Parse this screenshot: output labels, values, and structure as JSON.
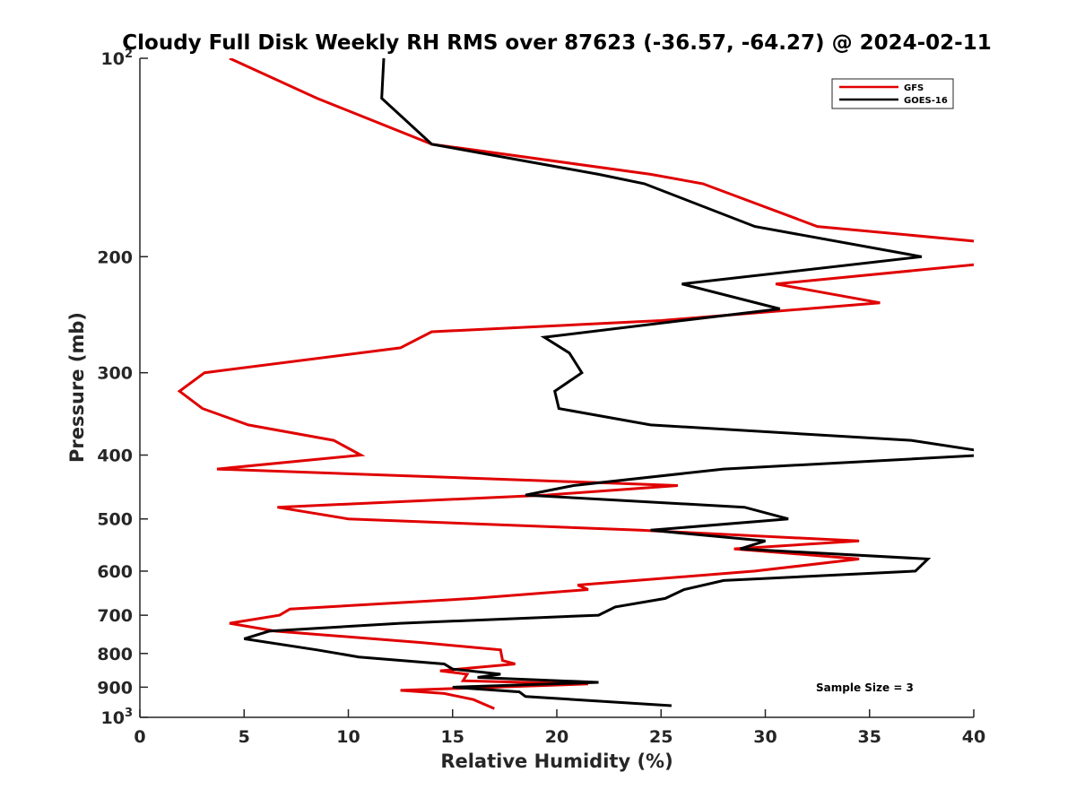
{
  "chart_data": {
    "type": "line",
    "title": "Cloudy Full Disk Weekly RH RMS over 87623 (-36.57, -64.27) @ 2024-02-11",
    "xlabel": "Relative Humidity (%)",
    "ylabel": "Pressure (mb)",
    "xlim": [
      0,
      40
    ],
    "ylim": [
      100,
      1000
    ],
    "yscale": "log",
    "y_reversed": true,
    "grid": false,
    "legend_position": "top-right",
    "x_ticks": [
      0,
      5,
      10,
      15,
      20,
      25,
      30,
      35,
      40
    ],
    "y_ticks": [
      {
        "value": 100,
        "label": "10",
        "sup": "2"
      },
      {
        "value": 200,
        "label": "200",
        "sup": ""
      },
      {
        "value": 300,
        "label": "300",
        "sup": ""
      },
      {
        "value": 400,
        "label": "400",
        "sup": ""
      },
      {
        "value": 500,
        "label": "500",
        "sup": ""
      },
      {
        "value": 600,
        "label": "600",
        "sup": ""
      },
      {
        "value": 700,
        "label": "700",
        "sup": ""
      },
      {
        "value": 800,
        "label": "800",
        "sup": ""
      },
      {
        "value": 900,
        "label": "900",
        "sup": ""
      },
      {
        "value": 1000,
        "label": "10",
        "sup": "3"
      }
    ],
    "annotation": "Sample Size = 3",
    "series": [
      {
        "name": "GFS",
        "color": "#e00000",
        "points": [
          [
            4.3,
            100
          ],
          [
            8.5,
            115
          ],
          [
            14,
            135
          ],
          [
            24.5,
            150
          ],
          [
            27,
            155
          ],
          [
            32.5,
            180
          ],
          [
            40.5,
            190
          ],
          [
            40.5,
            205
          ],
          [
            30.5,
            220
          ],
          [
            35.5,
            235
          ],
          [
            25,
            250
          ],
          [
            14,
            260
          ],
          [
            12.5,
            275
          ],
          [
            3.1,
            300
          ],
          [
            1.9,
            320
          ],
          [
            3,
            340
          ],
          [
            5.2,
            360
          ],
          [
            9.3,
            380
          ],
          [
            10.6,
            400
          ],
          [
            3.7,
            420
          ],
          [
            21.5,
            440
          ],
          [
            25.8,
            445
          ],
          [
            19.5,
            460
          ],
          [
            6.6,
            480
          ],
          [
            10,
            500
          ],
          [
            24,
            520
          ],
          [
            34.5,
            540
          ],
          [
            28.5,
            555
          ],
          [
            34.5,
            575
          ],
          [
            29.5,
            600
          ],
          [
            21,
            630
          ],
          [
            21.5,
            640
          ],
          [
            16,
            660
          ],
          [
            7.2,
            685
          ],
          [
            6.7,
            700
          ],
          [
            4.3,
            720
          ],
          [
            6.5,
            740
          ],
          [
            13.5,
            770
          ],
          [
            17.3,
            790
          ],
          [
            17.4,
            820
          ],
          [
            18,
            830
          ],
          [
            14.4,
            850
          ],
          [
            15.7,
            860
          ],
          [
            15.5,
            880
          ],
          [
            21.5,
            890
          ],
          [
            12.5,
            910
          ],
          [
            14.6,
            920
          ],
          [
            16,
            940
          ],
          [
            17,
            970
          ]
        ]
      },
      {
        "name": "GOES-16",
        "color": "#000000",
        "points": [
          [
            11.7,
            100
          ],
          [
            11.6,
            115
          ],
          [
            14,
            135
          ],
          [
            22,
            150
          ],
          [
            24.2,
            155
          ],
          [
            29.5,
            180
          ],
          [
            37.5,
            200
          ],
          [
            26,
            220
          ],
          [
            30.7,
            240
          ],
          [
            26,
            250
          ],
          [
            19.4,
            265
          ],
          [
            20.6,
            280
          ],
          [
            21.2,
            300
          ],
          [
            19.9,
            320
          ],
          [
            20.1,
            340
          ],
          [
            24.5,
            360
          ],
          [
            37,
            380
          ],
          [
            40.5,
            395
          ],
          [
            40.5,
            400
          ],
          [
            28,
            420
          ],
          [
            20.8,
            445
          ],
          [
            18.5,
            460
          ],
          [
            29,
            480
          ],
          [
            31.1,
            500
          ],
          [
            24.5,
            520
          ],
          [
            30,
            540
          ],
          [
            28.8,
            555
          ],
          [
            37.8,
            575
          ],
          [
            37.2,
            600
          ],
          [
            28,
            620
          ],
          [
            26.1,
            640
          ],
          [
            25.2,
            660
          ],
          [
            22.8,
            680
          ],
          [
            22,
            700
          ],
          [
            12.5,
            720
          ],
          [
            6.2,
            740
          ],
          [
            5,
            760
          ],
          [
            8.5,
            790
          ],
          [
            10.5,
            810
          ],
          [
            14.6,
            830
          ],
          [
            15,
            845
          ],
          [
            17.3,
            860
          ],
          [
            16.2,
            870
          ],
          [
            22,
            885
          ],
          [
            15,
            900
          ],
          [
            18.2,
            915
          ],
          [
            18.5,
            930
          ],
          [
            25.5,
            960
          ]
        ]
      }
    ]
  }
}
